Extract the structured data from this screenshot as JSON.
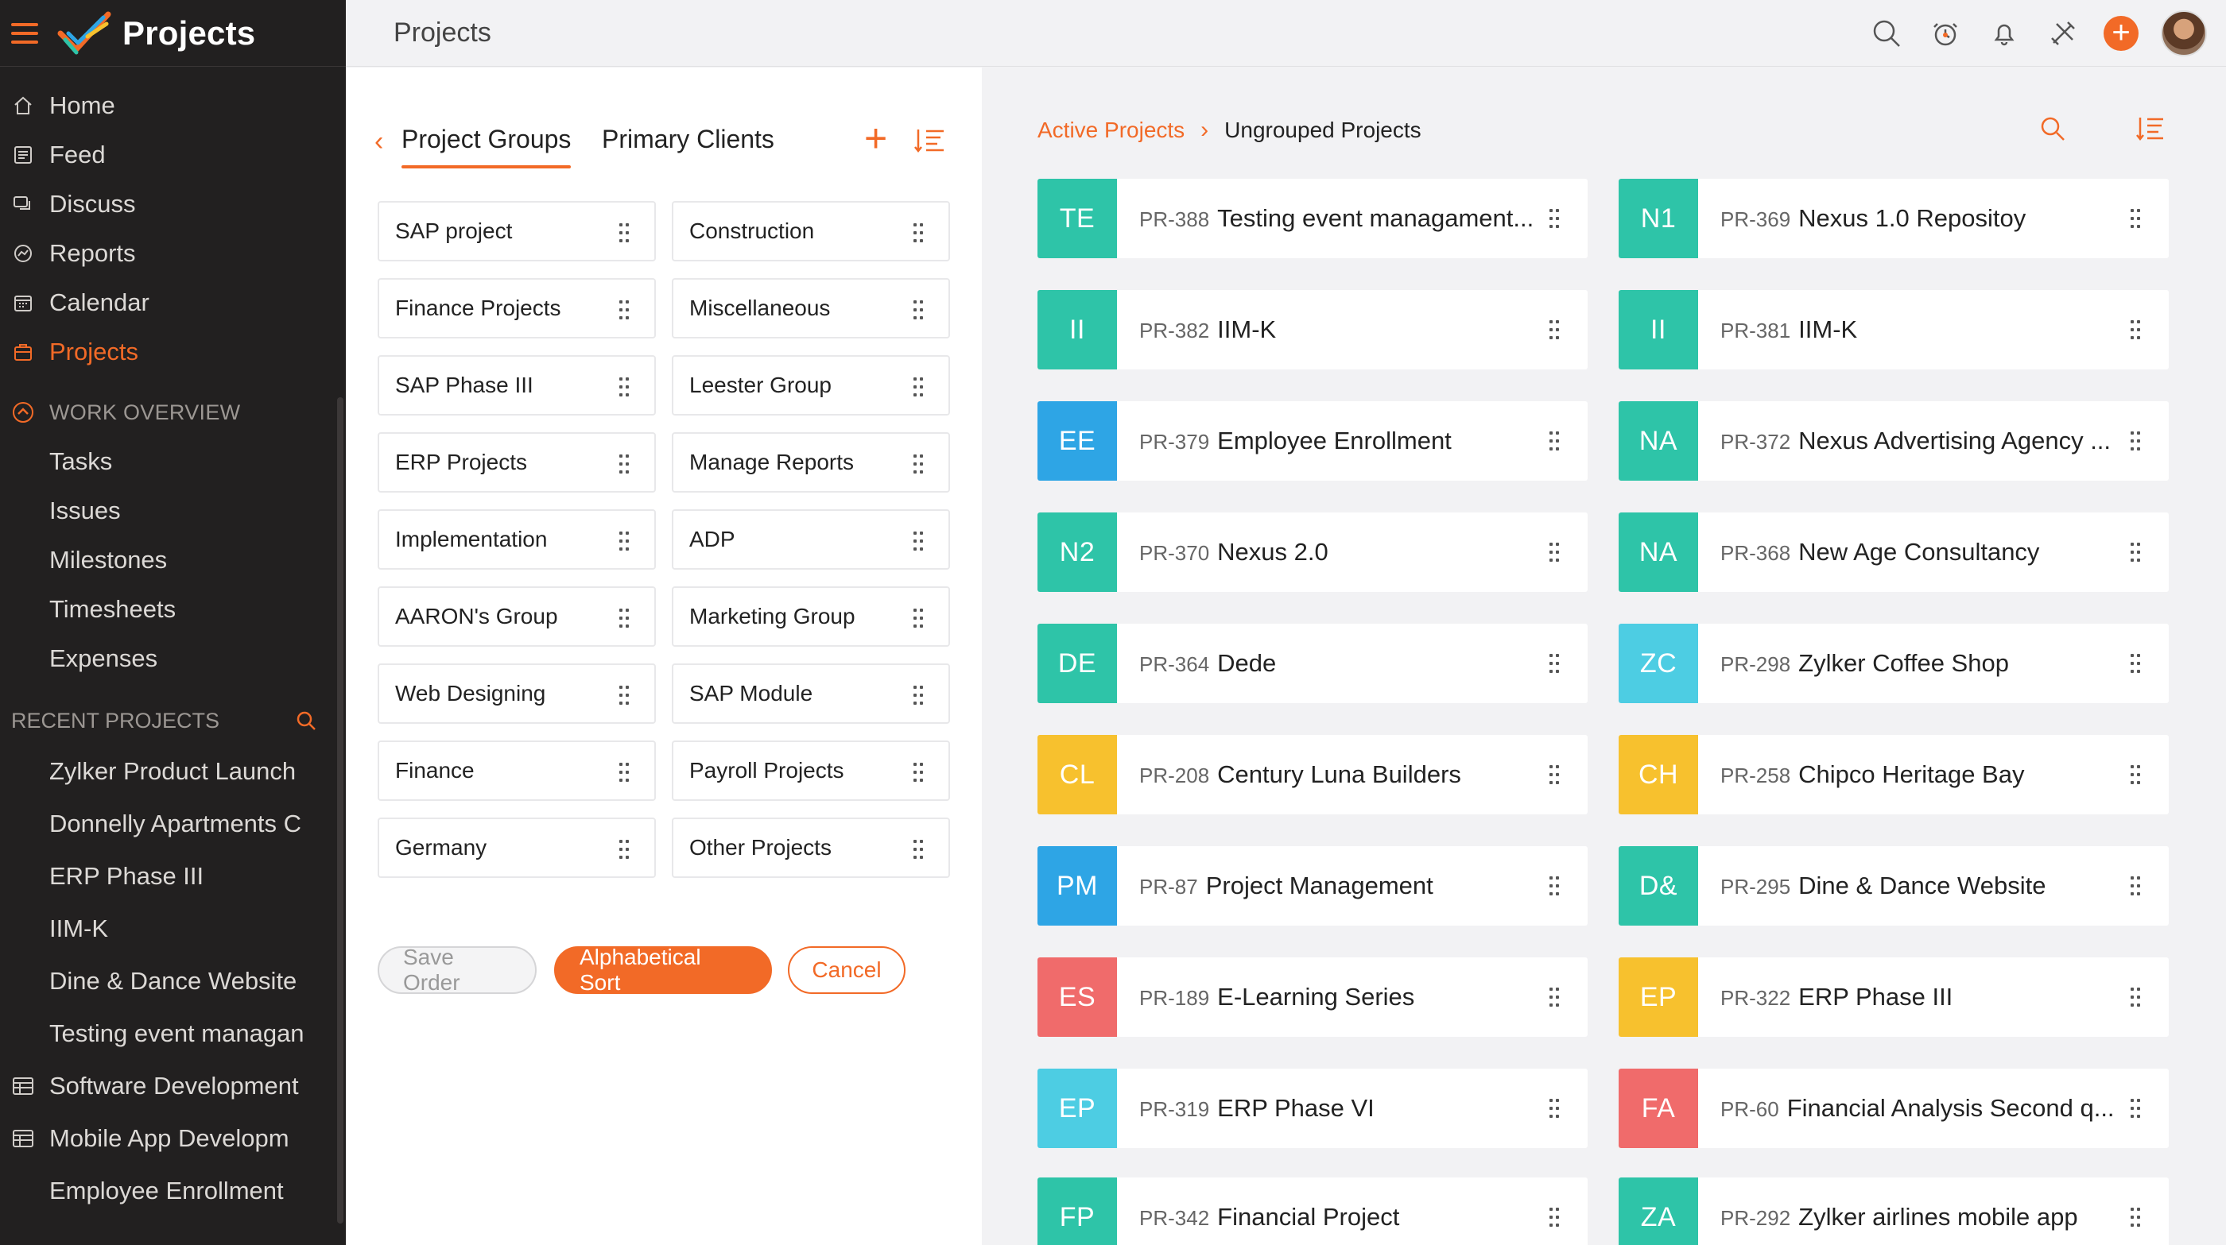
{
  "app": {
    "title": "Projects",
    "page_title": "Projects"
  },
  "sidebar": {
    "nav": [
      {
        "label": "Home",
        "icon": "home-icon"
      },
      {
        "label": "Feed",
        "icon": "feed-icon"
      },
      {
        "label": "Discuss",
        "icon": "discuss-icon"
      },
      {
        "label": "Reports",
        "icon": "reports-icon"
      },
      {
        "label": "Calendar",
        "icon": "calendar-icon"
      },
      {
        "label": "Projects",
        "icon": "projects-icon",
        "active": true
      }
    ],
    "work_overview_label": "WORK OVERVIEW",
    "work_items": [
      "Tasks",
      "Issues",
      "Milestones",
      "Timesheets",
      "Expenses"
    ],
    "recent_label": "RECENT PROJECTS",
    "recent": [
      {
        "label": "Zylker Product Launch"
      },
      {
        "label": "Donnelly Apartments C"
      },
      {
        "label": "ERP Phase III"
      },
      {
        "label": "IIM-K"
      },
      {
        "label": "Dine & Dance Website"
      },
      {
        "label": "Testing event managan"
      },
      {
        "label": "Software Development",
        "icon": "table-icon"
      },
      {
        "label": "Mobile App Developm",
        "icon": "table-icon"
      },
      {
        "label": "Employee Enrollment"
      }
    ]
  },
  "groups_panel": {
    "tab_groups": "Project Groups",
    "tab_clients": "Primary Clients",
    "groups": [
      "SAP project",
      "Construction",
      "Finance Projects",
      "Miscellaneous",
      "SAP Phase III",
      "Leester Group",
      "ERP Projects",
      "Manage Reports",
      "Implementation",
      "ADP",
      "AARON's Group",
      "Marketing Group",
      "Web Designing",
      "SAP Module",
      "Finance",
      "Payroll Projects",
      "Germany",
      "Other Projects"
    ],
    "save_label": "Save Order",
    "sort_label": "Alphabetical Sort",
    "cancel_label": "Cancel"
  },
  "breadcrumb": {
    "parent": "Active Projects",
    "separator": "›",
    "current": "Ungrouped Projects"
  },
  "projects": [
    {
      "badge": "TE",
      "color": "#2ec4a8",
      "id": "PR-388",
      "name": "Testing event managament..."
    },
    {
      "badge": "N1",
      "color": "#2ec4a8",
      "id": "PR-369",
      "name": "Nexus 1.0 Repositoy"
    },
    {
      "badge": "II",
      "color": "#2ec4a8",
      "id": "PR-382",
      "name": "IIM-K"
    },
    {
      "badge": "II",
      "color": "#2ec4a8",
      "id": "PR-381",
      "name": "IIM-K"
    },
    {
      "badge": "EE",
      "color": "#2ea5e5",
      "id": "PR-379",
      "name": "Employee Enrollment"
    },
    {
      "badge": "NA",
      "color": "#2ec4a8",
      "id": "PR-372",
      "name": "Nexus Advertising Agency ..."
    },
    {
      "badge": "N2",
      "color": "#2ec4a8",
      "id": "PR-370",
      "name": "Nexus 2.0"
    },
    {
      "badge": "NA",
      "color": "#2ec4a8",
      "id": "PR-368",
      "name": "New Age Consultancy"
    },
    {
      "badge": "DE",
      "color": "#2ec4a8",
      "id": "PR-364",
      "name": "Dede"
    },
    {
      "badge": "ZC",
      "color": "#4dcde3",
      "id": "PR-298",
      "name": "Zylker Coffee Shop"
    },
    {
      "badge": "CL",
      "color": "#f7c12e",
      "id": "PR-208",
      "name": "Century Luna Builders"
    },
    {
      "badge": "CH",
      "color": "#f7c12e",
      "id": "PR-258",
      "name": "Chipco Heritage Bay"
    },
    {
      "badge": "PM",
      "color": "#2ea5e5",
      "id": "PR-87",
      "name": "Project Management"
    },
    {
      "badge": "D&",
      "color": "#2ec4a8",
      "id": "PR-295",
      "name": "Dine & Dance Website"
    },
    {
      "badge": "ES",
      "color": "#f06b6b",
      "id": "PR-189",
      "name": "E-Learning Series"
    },
    {
      "badge": "EP",
      "color": "#f7c12e",
      "id": "PR-322",
      "name": "ERP Phase III"
    },
    {
      "badge": "EP",
      "color": "#4dcde3",
      "id": "PR-319",
      "name": "ERP Phase VI"
    },
    {
      "badge": "FA",
      "color": "#f06b6b",
      "id": "PR-60",
      "name": "Financial Analysis Second q..."
    },
    {
      "badge": "FP",
      "color": "#2ec4a8",
      "id": "PR-342",
      "name": "Financial Project"
    },
    {
      "badge": "ZA",
      "color": "#2ec4a8",
      "id": "PR-292",
      "name": "Zylker airlines mobile app"
    }
  ],
  "theme": {
    "accent": "#f26a27",
    "sidebar_bg": "#222020"
  }
}
